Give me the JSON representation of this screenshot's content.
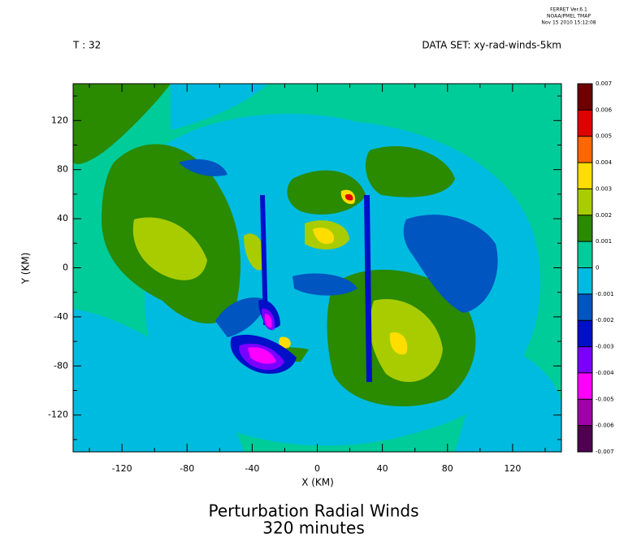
{
  "chart_data": {
    "type": "contour",
    "title": "Perturbation Radial Winds",
    "subtitle": "320 minutes",
    "header": {
      "software": "FERRET Ver.6.1",
      "org": "NOAA/PMEL TMAP",
      "timestamp": "Nov 15 2010 15:12:08",
      "time_step": "T : 32",
      "dataset": "DATA SET: xy-rad-winds-5km"
    },
    "x_label": "X (KM)",
    "y_label": "Y (KM)",
    "xlim": [
      -150,
      150
    ],
    "ylim": [
      -150,
      150
    ],
    "xticks": [
      -120,
      -80,
      -40,
      0,
      40,
      80,
      120
    ],
    "yticks": [
      -120,
      -80,
      -40,
      0,
      40,
      80,
      120
    ],
    "xminorticks": [
      -140,
      -100,
      -60,
      -20,
      20,
      60,
      100,
      140
    ],
    "yminorticks": [
      -140,
      -100,
      -60,
      -20,
      20,
      60,
      100,
      140
    ],
    "colorbar": {
      "levels": [
        0.007,
        0.006,
        0.005,
        0.004,
        0.003,
        0.002,
        0.001,
        0,
        -0.001,
        -0.002,
        -0.003,
        -0.004,
        -0.005,
        -0.006,
        -0.007
      ],
      "colors": [
        "#6e0000",
        "#e00000",
        "#ff6600",
        "#ffdd00",
        "#a8cc00",
        "#2a8a00",
        "#00cc99",
        "#00bbe0",
        "#0055c0",
        "#0010c8",
        "#7a00ff",
        "#ff00ff",
        "#a000a8",
        "#500050"
      ]
    }
  }
}
